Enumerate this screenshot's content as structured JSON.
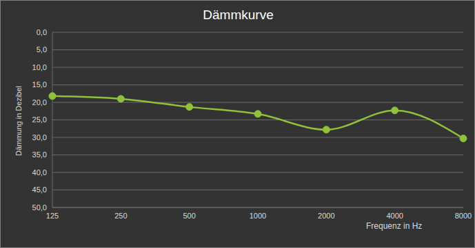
{
  "chart_data": {
    "type": "line",
    "title": "Dämmkurve",
    "x_label": "Frequenz in Hz",
    "y_label": "Dämmung in Dezibel",
    "categories": [
      "125",
      "250",
      "500",
      "1000",
      "2000",
      "4000",
      "8000"
    ],
    "series": [
      {
        "name": "Dämmung",
        "color": "#8fc13a",
        "values": [
          18.2,
          19.0,
          21.3,
          23.3,
          27.8,
          22.3,
          30.3
        ],
        "marker": "circle",
        "line_style": "solid"
      }
    ],
    "ylim": [
      0,
      50
    ],
    "yticks": [
      {
        "value": 0,
        "label": "0,0"
      },
      {
        "value": 5,
        "label": "5,0"
      },
      {
        "value": 10,
        "label": "10,0"
      },
      {
        "value": 15,
        "label": "15,0"
      },
      {
        "value": 20,
        "label": "20,0"
      },
      {
        "value": 25,
        "label": "25,0"
      },
      {
        "value": 30,
        "label": "30,0"
      },
      {
        "value": 35,
        "label": "35,0"
      },
      {
        "value": 40,
        "label": "40,0"
      },
      {
        "value": 45,
        "label": "45,0"
      },
      {
        "value": 50,
        "label": "50,0"
      }
    ],
    "grid": true
  }
}
